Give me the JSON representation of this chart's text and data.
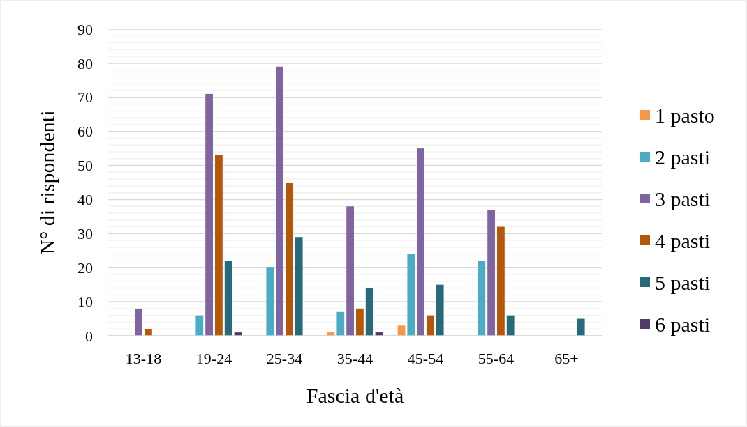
{
  "chart_data": {
    "type": "bar",
    "xlabel": "Fascia d'età",
    "ylabel": "N° di rispondenti",
    "categories": [
      "13-18",
      "19-24",
      "25-34",
      "35-44",
      "45-54",
      "55-64",
      "65+"
    ],
    "series": [
      {
        "name": "1 pasto",
        "color": "#f79646",
        "values": [
          0,
          0,
          0,
          1,
          3,
          0,
          0
        ]
      },
      {
        "name": "2 pasti",
        "color": "#4bacc6",
        "values": [
          0,
          6,
          20,
          7,
          24,
          22,
          0
        ]
      },
      {
        "name": "3 pasti",
        "color": "#8064a2",
        "values": [
          8,
          71,
          79,
          38,
          55,
          37,
          0
        ]
      },
      {
        "name": "4 pasti",
        "color": "#b65708",
        "values": [
          2,
          53,
          45,
          8,
          6,
          32,
          0
        ]
      },
      {
        "name": "5 pasti",
        "color": "#276a7c",
        "values": [
          0,
          22,
          29,
          14,
          15,
          6,
          5
        ]
      },
      {
        "name": "6 pasti",
        "color": "#4f3b6b",
        "values": [
          0,
          1,
          0,
          1,
          0,
          0,
          0
        ]
      }
    ],
    "ylim": [
      0,
      90
    ],
    "yticks": [
      0,
      10,
      20,
      30,
      40,
      50,
      60,
      70,
      80,
      90
    ],
    "grid": "y",
    "legend": "right"
  }
}
